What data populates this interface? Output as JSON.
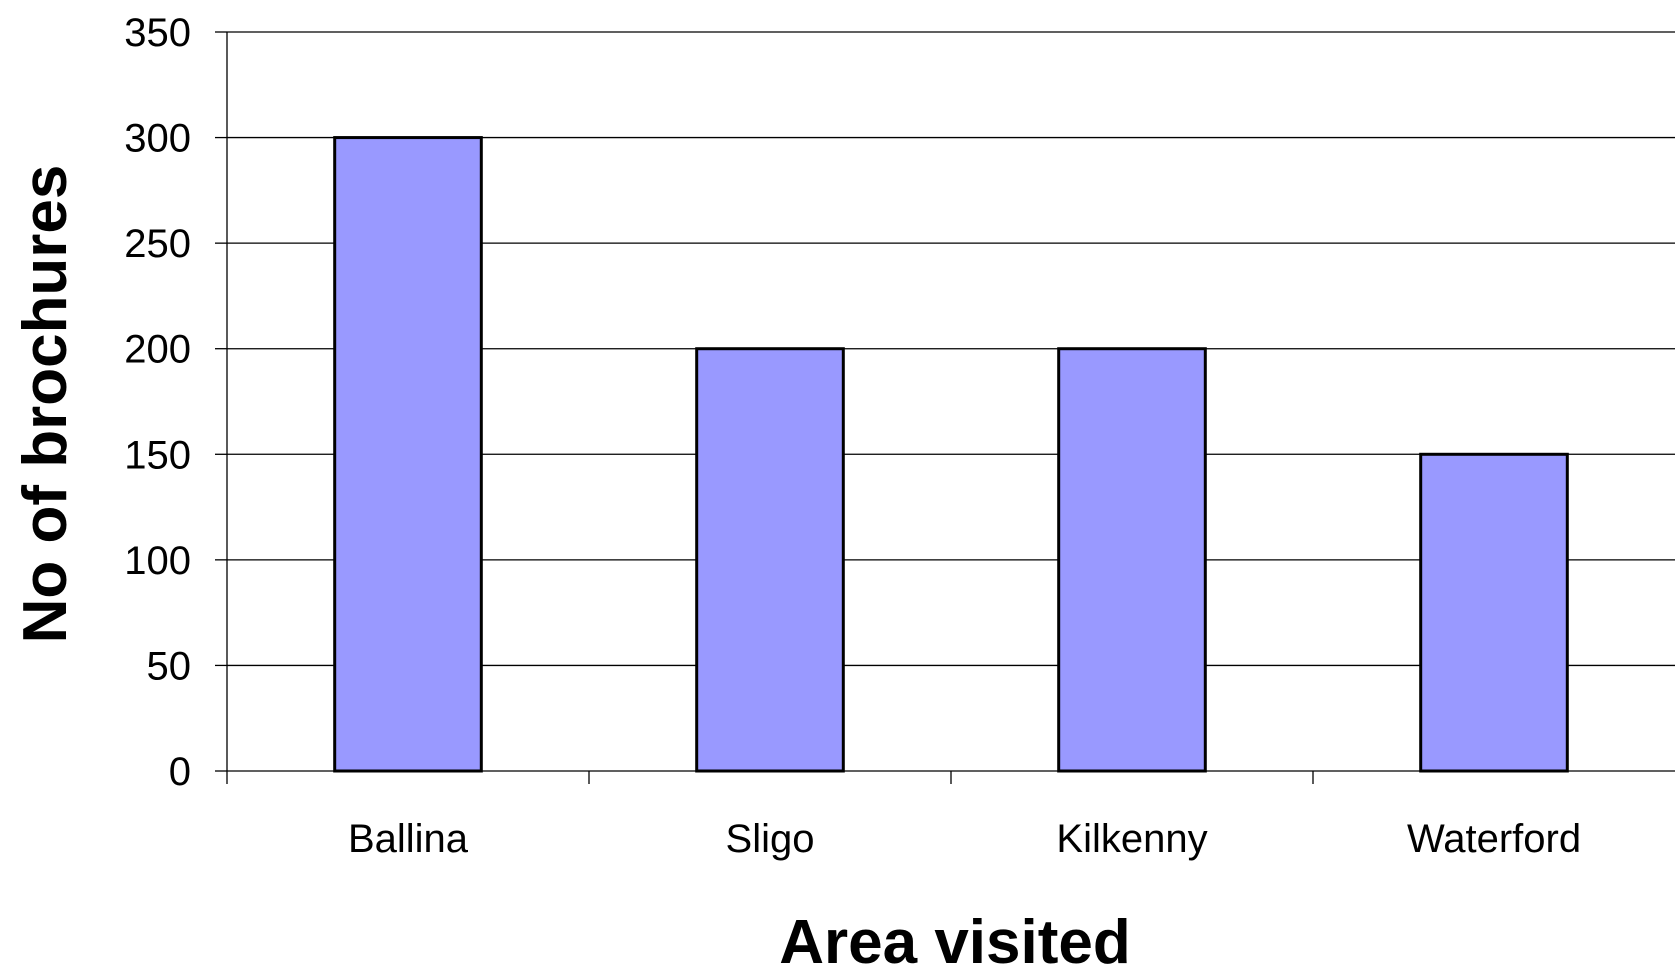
{
  "chart_data": {
    "type": "bar",
    "title": "",
    "xlabel": "Area visited",
    "ylabel": "No of brochures",
    "categories": [
      "Ballina",
      "Sligo",
      "Kilkenny",
      "Waterford"
    ],
    "values": [
      300,
      200,
      200,
      150
    ],
    "ylim": [
      0,
      350
    ],
    "yticks": [
      0,
      50,
      100,
      150,
      200,
      250,
      300,
      350
    ],
    "grid": true,
    "legend": "none",
    "colors": {
      "bar_fill": "#9999ff",
      "bar_stroke": "#000000",
      "gridline": "#000000",
      "axis": "#000000"
    }
  }
}
